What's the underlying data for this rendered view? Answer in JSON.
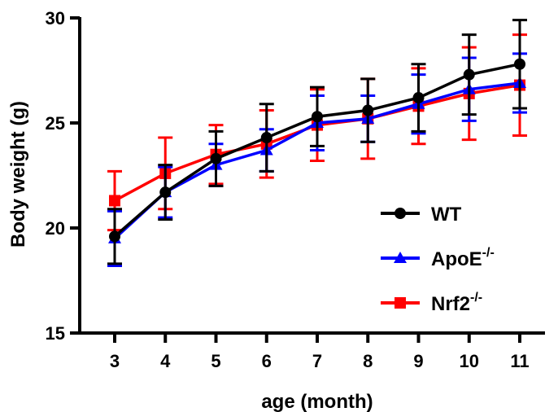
{
  "chart_data": {
    "type": "line",
    "xlabel": "age (month)",
    "ylabel": "Body weight (g)",
    "categories": [
      "3",
      "4",
      "5",
      "6",
      "7",
      "8",
      "9",
      "10",
      "11"
    ],
    "x": [
      3,
      4,
      5,
      6,
      7,
      8,
      9,
      10,
      11
    ],
    "ylim": [
      15,
      30
    ],
    "yticks": [
      "15",
      "20",
      "25",
      "30"
    ],
    "grid": false,
    "legend_position": "right",
    "series": [
      {
        "name": "WT",
        "legend_sup": "",
        "color": "#000000",
        "marker": "circle",
        "values": [
          19.6,
          21.7,
          23.3,
          24.3,
          25.3,
          25.6,
          26.2,
          27.3,
          27.8
        ],
        "errors": [
          1.3,
          1.3,
          1.3,
          1.6,
          1.4,
          1.5,
          1.6,
          1.9,
          2.1
        ]
      },
      {
        "name": "ApoE",
        "legend_sup": "-/-",
        "color": "#0000FF",
        "marker": "triangle",
        "values": [
          19.5,
          21.7,
          23.0,
          23.7,
          25.0,
          25.2,
          25.9,
          26.6,
          26.9
        ],
        "errors": [
          1.3,
          1.2,
          1.0,
          1.0,
          1.3,
          1.1,
          1.4,
          1.5,
          1.4
        ]
      },
      {
        "name": "Nrf2",
        "legend_sup": "-/-",
        "color": "#FF0000",
        "marker": "square",
        "values": [
          21.3,
          22.6,
          23.5,
          24.0,
          24.9,
          25.2,
          25.8,
          26.4,
          26.8
        ],
        "errors": [
          1.4,
          1.7,
          1.4,
          1.6,
          1.7,
          1.9,
          1.8,
          2.2,
          2.4
        ]
      }
    ]
  }
}
